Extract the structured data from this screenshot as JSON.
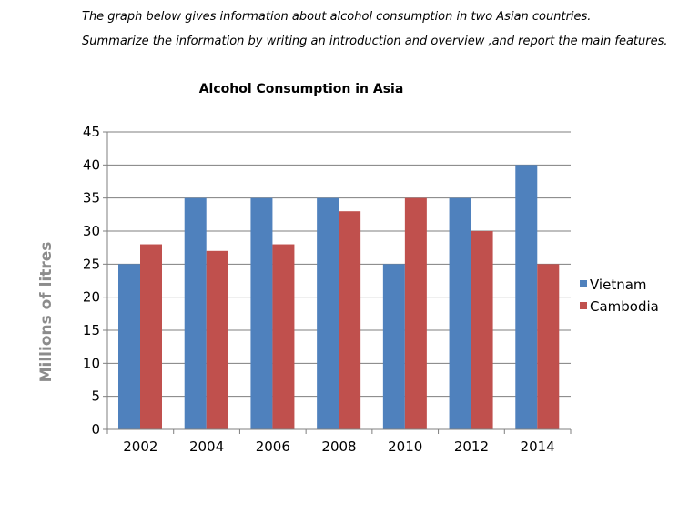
{
  "prompt": {
    "line1": "The graph below  gives information about alcohol consumption in two Asian countries.",
    "line2": "Summarize the information by writing an introduction and overview ,and report the main features."
  },
  "chart_data": {
    "type": "bar",
    "title": "Alcohol Consumption in Asia",
    "xlabel": "",
    "ylabel": "Millions of litres",
    "categories": [
      "2002",
      "2004",
      "2006",
      "2008",
      "2010",
      "2012",
      "2014"
    ],
    "series": [
      {
        "name": "Vietnam",
        "color": "#4f81bd",
        "values": [
          25,
          35,
          35,
          35,
          25,
          35,
          40
        ]
      },
      {
        "name": "Cambodia",
        "color": "#c0504d",
        "values": [
          28,
          27,
          28,
          33,
          35,
          30,
          25
        ]
      }
    ],
    "ylim": [
      0,
      45
    ],
    "yticks": [
      0,
      5,
      10,
      15,
      20,
      25,
      30,
      35,
      40,
      45
    ],
    "grid": true,
    "legend": "right"
  }
}
